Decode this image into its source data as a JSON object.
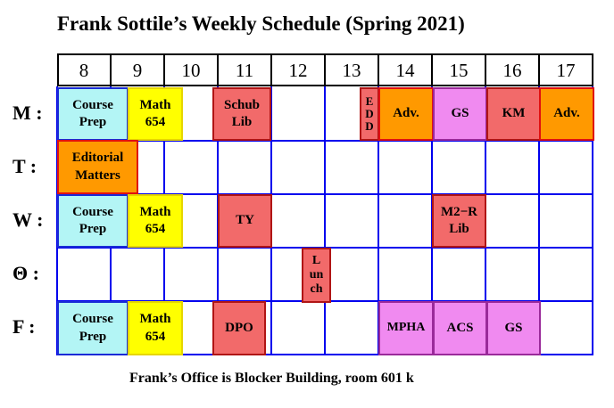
{
  "title": "Frank Sottile’s Weekly Schedule (Spring 2021)",
  "footer": "Frank’s Office is Blocker Building, room 601 k",
  "hours": [
    "8",
    "9",
    "10",
    "11",
    "12",
    "13",
    "14",
    "15",
    "16",
    "17"
  ],
  "days": [
    "M :",
    "T :",
    "W :",
    "Θ :",
    "F :"
  ],
  "events": {
    "m_course": "Course\nPrep",
    "m_math": "Math\n654",
    "m_schub": "Schub\nLib",
    "m_edd": "E\nD\nD",
    "m_adv1": "Adv.",
    "m_gs": "GS",
    "m_km": "KM",
    "m_adv2": "Adv.",
    "t_editorial": "Editorial\nMatters",
    "w_course": "Course\nPrep",
    "w_math": "Math\n654",
    "w_ty": "TY",
    "w_m2r": "M2−R\nLib",
    "th_lunch": "L\nun\nch",
    "f_course": "Course\nPrep",
    "f_math": "Math\n654",
    "f_dpo": "DPO",
    "f_mpha": "MPHA",
    "f_acs": "ACS",
    "f_gs": "GS"
  },
  "colors": {
    "grid": "#0000ee",
    "cyan": "#b3f5f5",
    "yellow": "#ffff00",
    "red": "#f26a6a",
    "orange": "#ff9900",
    "pink": "#f08af0"
  }
}
